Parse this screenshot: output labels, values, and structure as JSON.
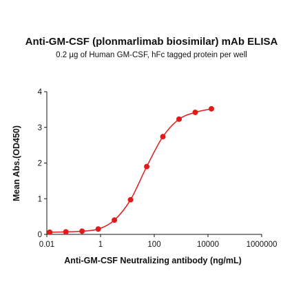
{
  "chart_data": {
    "type": "scatter",
    "title": "Anti-GM-CSF (plonmarlimab biosimilar) mAb ELISA",
    "subtitle": "0.2 µg of Human GM-CSF, hFc tagged protein per well",
    "xlabel": "Anti-GM-CSF Neutralizing antibody (ng/mL)",
    "ylabel": "Mean Abs.(OD450)",
    "x_scale": "log",
    "xlim": [
      0.01,
      1000000
    ],
    "ylim": [
      0,
      4
    ],
    "x_ticks": [
      0.01,
      1,
      100,
      10000,
      1000000
    ],
    "x_tick_labels": [
      "0.01",
      "1",
      "100",
      "10000",
      "1000000"
    ],
    "y_ticks": [
      0,
      1,
      2,
      3,
      4
    ],
    "y_tick_labels": [
      "0",
      "1",
      "2",
      "3",
      "4"
    ],
    "grid": false,
    "color": "#e01b1b",
    "series": [
      {
        "x": [
          0.0128,
          0.0512,
          0.205,
          0.82,
          3.28,
          13.1,
          52.4,
          210,
          839,
          3355,
          13422
        ],
        "y": [
          0.06,
          0.07,
          0.09,
          0.15,
          0.4,
          0.97,
          1.9,
          2.74,
          3.23,
          3.42,
          3.52
        ]
      }
    ]
  }
}
